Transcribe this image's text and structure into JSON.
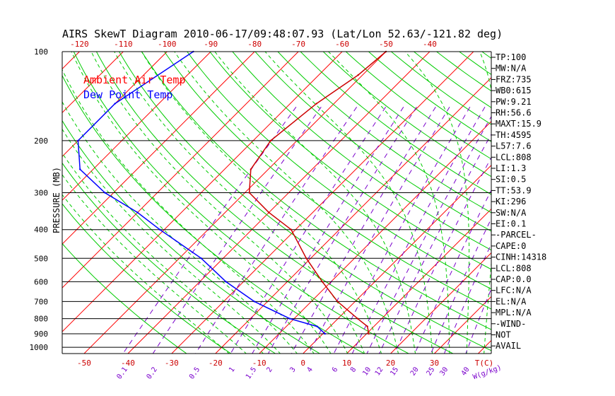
{
  "title": "AIRS SkewT Diagram 2010-06-17/09:48:07.93 (Lat/Lon 52.63/-121.82 deg)",
  "legend": [
    {
      "label": "Ambient Air Temp",
      "color": "#ff0000"
    },
    {
      "label": "Dew Point Temp",
      "color": "#0000ff"
    }
  ],
  "y_axis_label": "PRESSURE (MB)",
  "temp_unit_label": "T(C)",
  "mixing_unit_label": "W(g/kg)",
  "colors": {
    "isotherm": "#ff0000",
    "dry_adiabat": "#00cc00",
    "moist_adiabat": "#00cc00",
    "mixing_ratio": "#7a00cc",
    "temp_profile": "#cc0000",
    "dew_profile": "#0000ff",
    "axis_ticks": "#cc0000",
    "frame": "#000000"
  },
  "indices": [
    "TP:100",
    "MW:N/A",
    "FRZ:735",
    "WB0:615",
    "PW:9.21",
    "RH:56.6",
    "MAXT:15.9",
    "TH:4595",
    "L57:7.6",
    "LCL:808",
    "LI:1.3",
    "SI:0.5",
    "TT:53.9",
    "KI:296",
    "SW:N/A",
    "EI:0.1",
    "-PARCEL-",
    "CAPE:0",
    "CINH:14318",
    "LCL:808",
    "CAP:0.0",
    "LFC:N/A",
    "EL:N/A",
    "MPL:N/A",
    "-WIND-",
    "NOT",
    "AVAIL"
  ],
  "chart_data": {
    "type": "line",
    "title": "AIRS SkewT Diagram 2010-06-17/09:48:07.93 (Lat/Lon 52.63/-121.82 deg)",
    "ylabel": "PRESSURE (MB)",
    "y_scale": "log",
    "ylim": [
      1050,
      100
    ],
    "xlim_bottom": [
      -55,
      43
    ],
    "pressure_ticks": [
      100,
      200,
      300,
      400,
      500,
      600,
      700,
      800,
      900,
      1000
    ],
    "bottom_temp_ticks": [
      -50,
      -40,
      -30,
      -20,
      -10,
      0,
      10,
      20,
      30
    ],
    "top_temp_ticks": [
      -120,
      -110,
      -100,
      -90,
      -80,
      -70,
      -60,
      -50,
      -40
    ],
    "mixing_ratio_ticks": [
      "0.1",
      "0.2",
      "0.5",
      "1",
      "1.5",
      "2",
      "3",
      "4",
      "6",
      "8",
      "10",
      "12",
      "15",
      "20",
      "25",
      "30",
      "40"
    ],
    "series": [
      {
        "name": "Ambient Air Temp",
        "pressure": [
          100,
          120,
          150,
          200,
          250,
          300,
          350,
          400,
          500,
          600,
          700,
          800,
          850,
          900
        ],
        "temperature": [
          -50,
          -51,
          -54,
          -56,
          -54,
          -49,
          -40,
          -31,
          -21,
          -12,
          -4,
          4.5,
          8.5,
          10.5
        ]
      },
      {
        "name": "Dew Point Temp",
        "pressure": [
          100,
          150,
          200,
          250,
          300,
          350,
          400,
          500,
          600,
          700,
          800,
          850,
          900
        ],
        "temperature": [
          -94,
          -100,
          -100,
          -93,
          -82,
          -70,
          -61,
          -45,
          -34,
          -23,
          -11,
          -3,
          0.5
        ]
      }
    ]
  }
}
